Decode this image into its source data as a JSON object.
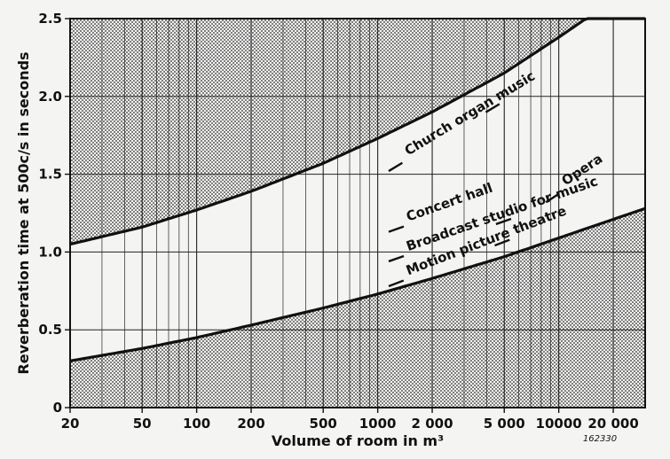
{
  "chart_data": {
    "type": "line",
    "xlabel": "Volume of room in m³",
    "ylabel": "Reverberation time at 500c/s in seconds",
    "xscale": "log",
    "xlim": [
      20,
      30000
    ],
    "ylim": [
      0,
      2.5
    ],
    "x_ticks": [
      {
        "value": 20,
        "label": "20"
      },
      {
        "value": 50,
        "label": "50"
      },
      {
        "value": 100,
        "label": "100"
      },
      {
        "value": 200,
        "label": "200"
      },
      {
        "value": 500,
        "label": "500"
      },
      {
        "value": 1000,
        "label": "1000"
      },
      {
        "value": 2000,
        "label": "2 000"
      },
      {
        "value": 5000,
        "label": "5 000"
      },
      {
        "value": 10000,
        "label": "10000"
      },
      {
        "value": 20000,
        "label": "20 000"
      }
    ],
    "y_ticks": [
      {
        "value": 0,
        "label": "0"
      },
      {
        "value": 0.5,
        "label": "0.5"
      },
      {
        "value": 1.0,
        "label": "1.0"
      },
      {
        "value": 1.5,
        "label": "1.5"
      },
      {
        "value": 2.0,
        "label": "2.0"
      },
      {
        "value": 2.5,
        "label": "2.5"
      }
    ],
    "grid": true,
    "series": [
      {
        "role": "upper-bound",
        "x": [
          20,
          50,
          100,
          200,
          500,
          1000,
          2000,
          5000,
          10000,
          20000
        ],
        "values": [
          1.05,
          1.16,
          1.27,
          1.39,
          1.57,
          1.73,
          1.9,
          2.15,
          2.38,
          2.62
        ]
      },
      {
        "role": "lower-bound",
        "x": [
          20,
          50,
          100,
          200,
          500,
          1000,
          2000,
          5000,
          10000,
          20000,
          30000
        ],
        "values": [
          0.3,
          0.38,
          0.45,
          0.53,
          0.64,
          0.73,
          0.83,
          0.97,
          1.09,
          1.21,
          1.28
        ]
      }
    ],
    "annotations": [
      {
        "text": "Church organ music",
        "x": 1150,
        "y": 1.52,
        "x_end": 5000,
        "y_end": 1.97
      },
      {
        "text": "Concert hall",
        "x": 1150,
        "y": 1.13,
        "x_end": 3000,
        "y_end": 1.3
      },
      {
        "text": "Opera",
        "x": 8500,
        "y": 1.32,
        "x_end": 21000,
        "y_end": 1.62
      },
      {
        "text": "Broadcast studio for music",
        "x": 1150,
        "y": 0.94,
        "x_end": 8000,
        "y_end": 1.28
      },
      {
        "text": "Motion picture theatre",
        "x": 1150,
        "y": 0.78,
        "x_end": 10000,
        "y_end": 1.2
      }
    ],
    "figure_code": "162330"
  }
}
